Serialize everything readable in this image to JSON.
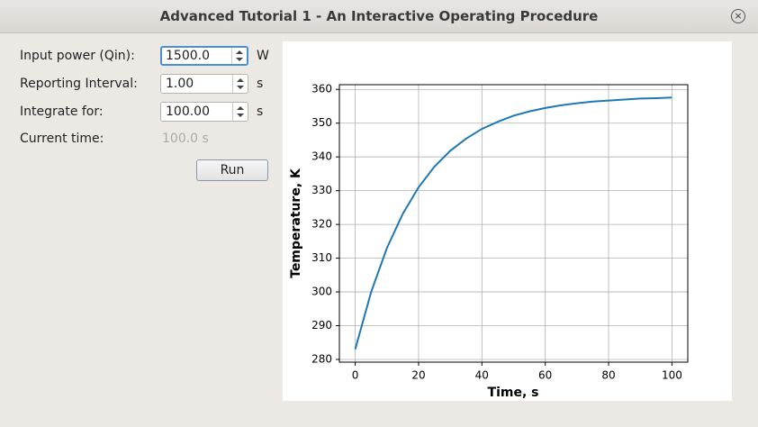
{
  "window": {
    "title": "Advanced Tutorial 1 - An Interactive Operating Procedure"
  },
  "form": {
    "fields": [
      {
        "label": "Input power (Qin):",
        "value": "1500.0",
        "unit": "W"
      },
      {
        "label": "Reporting Interval:",
        "value": "1.00",
        "unit": "s"
      },
      {
        "label": "Integrate for:",
        "value": "100.00",
        "unit": "s"
      }
    ],
    "current_time": {
      "label": "Current time:",
      "value": "100.0 s"
    },
    "button": "Run"
  },
  "chart_data": {
    "type": "line",
    "xlabel": "Time, s",
    "ylabel": "Temperature, K",
    "x": [
      0,
      5,
      10,
      15,
      20,
      25,
      30,
      35,
      40,
      45,
      50,
      55,
      60,
      65,
      70,
      75,
      80,
      85,
      90,
      95,
      100
    ],
    "series": [
      {
        "color": "#1f77b4",
        "values": [
          283,
          299.9,
          313,
          323.1,
          331,
          337.1,
          341.8,
          345.4,
          348.3,
          350.4,
          352.2,
          353.5,
          354.5,
          355.3,
          355.9,
          356.4,
          356.7,
          357,
          357.3,
          357.4,
          357.6
        ]
      }
    ],
    "xlim": [
      -5,
      105
    ],
    "ylim": [
      279.2,
      361.4
    ],
    "xticks": [
      0,
      20,
      40,
      60,
      80,
      100
    ],
    "yticks": [
      280,
      290,
      300,
      310,
      320,
      330,
      340,
      350,
      360
    ],
    "grid": true
  }
}
